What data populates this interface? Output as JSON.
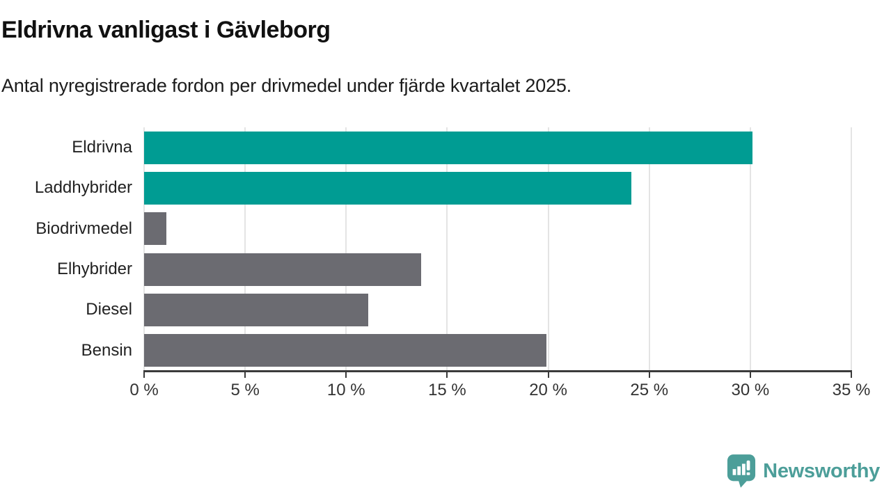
{
  "page": {
    "title": "Eldrivna vanligast i Gävleborg",
    "subtitle": "Antal nyregistrerade fordon per drivmedel under fjärde kvartalet 2025."
  },
  "chart_data": {
    "type": "bar",
    "orientation": "horizontal",
    "title": "Eldrivna vanligast i Gävleborg",
    "subtitle": "Antal nyregistrerade fordon per drivmedel under fjärde kvartalet 2025.",
    "categories": [
      "Eldrivna",
      "Laddhybrider",
      "Biodrivmedel",
      "Elhybrider",
      "Diesel",
      "Bensin"
    ],
    "values": [
      30.1,
      24.1,
      1.1,
      13.7,
      11.1,
      19.9
    ],
    "unit": "%",
    "xlabel": "",
    "ylabel": "",
    "xlim": [
      0,
      35
    ],
    "x_ticks": [
      0,
      5,
      10,
      15,
      20,
      25,
      30,
      35
    ],
    "x_tick_labels": [
      "0 %",
      "5 %",
      "10 %",
      "15 %",
      "20 %",
      "25 %",
      "30 %",
      "35 %"
    ],
    "grid": "vertical-only",
    "legend": "none",
    "bar_colors": [
      "#009c93",
      "#009c93",
      "#6b6b71",
      "#6b6b71",
      "#6b6b71",
      "#6b6b71"
    ],
    "highlight_color": "#009c93",
    "default_color": "#6b6b71",
    "gridline_color": "#e4e4e4",
    "axis_color": "#3a3a3a"
  },
  "branding": {
    "logo_text": "Newsworthy",
    "logo_color": "#4c9e99",
    "logo_icon": "newsworthy-speech-bubble-barchart-icon"
  }
}
